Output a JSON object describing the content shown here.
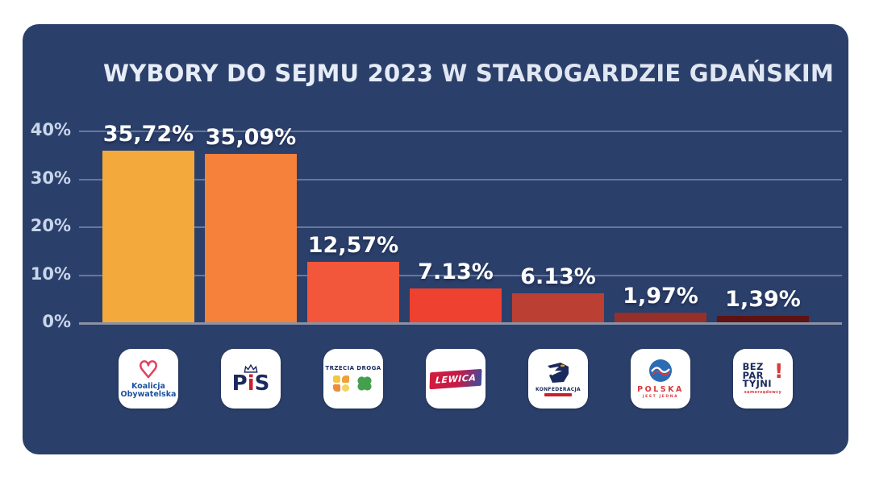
{
  "title": {
    "part1": "WYBORY DO SEJMU 2023",
    "part2": " W STAROGARDZIE GDAŃSKIM"
  },
  "chart_data": {
    "type": "bar",
    "title": "WYBORY DO SEJMU 2023 W STAROGARDZIE GDAŃSKIM",
    "categories": [
      "Koalicja Obywatelska",
      "PiS",
      "Trzecia Droga",
      "Lewica",
      "Konfederacja",
      "Polska Jest Jedna",
      "Bezpartyjni Samorządowcy"
    ],
    "values": [
      35.72,
      35.09,
      12.57,
      7.13,
      6.13,
      1.97,
      1.39
    ],
    "value_labels": [
      "35,72%",
      "35,09%",
      "12,57%",
      "7.13%",
      "6.13%",
      "1,97%",
      "1,39%"
    ],
    "bar_colors": [
      "#F3A93C",
      "#F5813B",
      "#F2573B",
      "#EF4130",
      "#BC3F33",
      "#96302A",
      "#5E1313"
    ],
    "xlabel": "",
    "ylabel": "",
    "ylim": [
      0,
      40
    ],
    "yticks": [
      "40%",
      "30%",
      "20%",
      "10%",
      "0%"
    ],
    "ytick_values": [
      40,
      30,
      20,
      10,
      0
    ],
    "grid": true,
    "legend": false
  },
  "colors": {
    "page_background": "#FFFFFF",
    "panel_background": "#2B3F6B",
    "gridline": "#AEBFD9",
    "baseline": "#8A93A6",
    "tick_text": "#C9D6EA",
    "bar_label_text": "#FFFFFF",
    "title_text": "#E7EDF7"
  },
  "parties": [
    {
      "name": "Koalicja Obywatelska",
      "line1": "Koalicja",
      "line2": "Obywatelska"
    },
    {
      "name": "PiS",
      "t1": "P",
      "t2": "i",
      "t3": "S"
    },
    {
      "name": "Trzecia Droga",
      "header": "TRZECIA DROGA"
    },
    {
      "name": "Lewica",
      "text": "LEWICA"
    },
    {
      "name": "Konfederacja",
      "text": "KONFEDERACJA"
    },
    {
      "name": "Polska Jest Jedna",
      "line1": "POLSKA",
      "line2": "JEST JEDNA"
    },
    {
      "name": "Bezpartyjni Samorządowcy",
      "line1": "BEZ",
      "line2": "PAR",
      "line3": "TYJNI",
      "mark": "!",
      "sub": "samorządowcy"
    }
  ]
}
